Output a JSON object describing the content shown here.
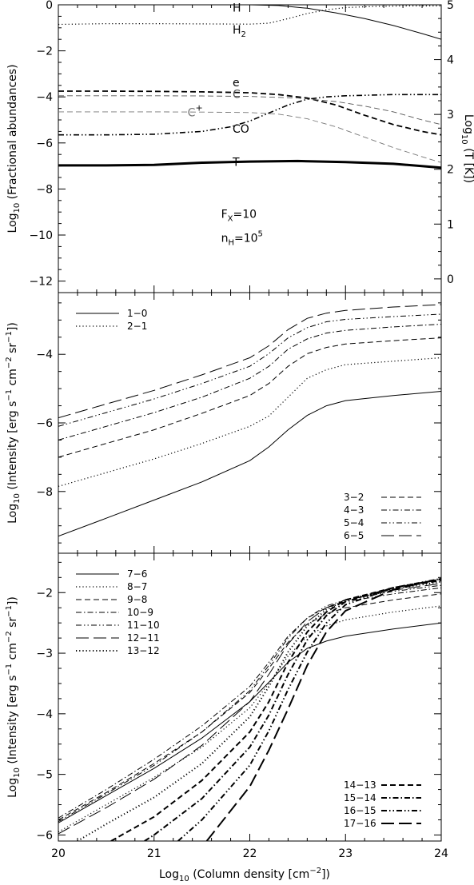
{
  "figure": {
    "xlabel_main": "Log",
    "xlabel_sub": "10",
    "xlabel_rest": " (Column density [cm",
    "xlabel_sup": "−2",
    "xlabel_end": "])"
  },
  "chart_data": [
    {
      "id": "abundances",
      "type": "line",
      "xlim": [
        20,
        24
      ],
      "ylim": [
        -12.5,
        0
      ],
      "y2lim": [
        -0.25,
        5
      ],
      "ylabel": {
        "main": "Log",
        "sub": "10",
        "rest": " (Fractional abundances)"
      },
      "y2label": {
        "main": "Log",
        "sub": "10",
        "rest": " (T [K])"
      },
      "xticks": [
        20,
        21,
        22,
        23,
        24
      ],
      "yticks": [
        0,
        -2,
        -4,
        -6,
        -8,
        -10,
        -12
      ],
      "ytick_labels": [
        "0",
        "−2",
        "−4",
        "−6",
        "−8",
        "−10",
        "−12"
      ],
      "y2ticks": [
        5,
        4,
        3,
        2,
        1,
        0
      ],
      "y2tick_labels": [
        "5",
        "4",
        "3",
        "2",
        "1",
        "0"
      ],
      "show_xtick_labels": false,
      "annotations": [
        {
          "text": "F",
          "sub": "X",
          "rest": "=10",
          "x": 21.7,
          "y": -9.25
        },
        {
          "text": "n",
          "sub": "H",
          "rest": "=10",
          "sup": "5",
          "x": 21.7,
          "y": -10.3
        }
      ],
      "series": [
        {
          "name": "H",
          "style": "solid",
          "width": 1,
          "color": "#000000",
          "axis": "left",
          "label": {
            "text": "H",
            "x": 21.82,
            "y": -0.3
          },
          "x": [
            20,
            21,
            22,
            22.3,
            22.6,
            22.9,
            23.2,
            23.5,
            23.8,
            24
          ],
          "y": [
            0,
            0,
            0,
            -0.03,
            -0.15,
            -0.35,
            -0.6,
            -0.9,
            -1.25,
            -1.5
          ]
        },
        {
          "name": "H",
          "sub": "2",
          "style": "dotted",
          "width": 1.2,
          "color": "#000000",
          "axis": "left",
          "label": {
            "text": "H",
            "sub": "2",
            "x": 21.82,
            "y": -1.25
          },
          "x": [
            20,
            20.5,
            21,
            21.5,
            22,
            22.2,
            22.4,
            22.6,
            22.8,
            23,
            23.3,
            23.6,
            24
          ],
          "y": [
            -0.85,
            -0.82,
            -0.82,
            -0.83,
            -0.84,
            -0.8,
            -0.6,
            -0.38,
            -0.22,
            -0.12,
            -0.07,
            -0.05,
            -0.05
          ]
        },
        {
          "name": "e",
          "style": "dashed",
          "width": 1.8,
          "color": "#000000",
          "axis": "left",
          "label": {
            "text": "e",
            "x": 21.82,
            "y": -3.55
          },
          "x": [
            20,
            20.5,
            21,
            21.5,
            22,
            22.3,
            22.6,
            22.9,
            23.2,
            23.5,
            23.8,
            24
          ],
          "y": [
            -3.75,
            -3.75,
            -3.76,
            -3.78,
            -3.82,
            -3.9,
            -4.05,
            -4.35,
            -4.8,
            -5.2,
            -5.5,
            -5.65
          ]
        },
        {
          "name": "C",
          "style": "dashed",
          "width": 0.9,
          "color": "#555555",
          "axis": "left",
          "label": {
            "text": "C",
            "x": 21.82,
            "y": -4.05
          },
          "x": [
            20,
            20.5,
            21,
            21.5,
            22,
            22.5,
            22.9,
            23.2,
            23.5,
            23.8,
            24
          ],
          "y": [
            -3.95,
            -3.95,
            -3.95,
            -3.96,
            -3.98,
            -4.05,
            -4.2,
            -4.4,
            -4.65,
            -5.0,
            -5.2
          ]
        },
        {
          "name": "C",
          "sup": "+",
          "style": "dashed",
          "width": 0.9,
          "color": "#777777",
          "axis": "left",
          "label": {
            "text": "C",
            "sup": "+",
            "x": 21.35,
            "y": -4.85
          },
          "x": [
            20,
            20.5,
            21,
            21.5,
            22,
            22.3,
            22.6,
            22.9,
            23.2,
            23.5,
            23.8,
            24
          ],
          "y": [
            -4.65,
            -4.65,
            -4.65,
            -4.66,
            -4.68,
            -4.75,
            -4.95,
            -5.3,
            -5.75,
            -6.2,
            -6.6,
            -6.85
          ]
        },
        {
          "name": "CO",
          "style": "dashdotdot",
          "width": 1.6,
          "color": "#000000",
          "axis": "left",
          "label": {
            "text": "CO",
            "x": 21.82,
            "y": -5.55
          },
          "x": [
            20,
            20.5,
            21,
            21.5,
            21.8,
            22,
            22.2,
            22.4,
            22.6,
            22.8,
            23,
            23.5,
            24
          ],
          "y": [
            -5.65,
            -5.65,
            -5.62,
            -5.5,
            -5.3,
            -5.05,
            -4.7,
            -4.35,
            -4.1,
            -4.0,
            -3.95,
            -3.9,
            -3.9
          ]
        },
        {
          "name": "T",
          "style": "solid",
          "width": 3,
          "color": "#000000",
          "axis": "right",
          "label": {
            "text": "T",
            "x": 21.82,
            "y": -7.0
          },
          "x": [
            20,
            20.5,
            21,
            21.5,
            22,
            22.5,
            23,
            23.5,
            24
          ],
          "y": [
            2.07,
            2.07,
            2.08,
            2.12,
            2.14,
            2.15,
            2.13,
            2.1,
            2.03
          ]
        }
      ]
    },
    {
      "id": "intensity-low",
      "type": "line",
      "xlim": [
        20,
        24
      ],
      "ylim": [
        -9.8,
        -2.2
      ],
      "ylabel": {
        "main": "Log",
        "sub": "10",
        "rest": " (Intensity [erg s",
        "sup1": "−1",
        "mid": " cm",
        "sup2": "−2",
        "mid2": " sr",
        "sup3": "−1",
        "end": "])"
      },
      "xticks": [
        20,
        21,
        22,
        23,
        24
      ],
      "yticks": [
        -4,
        -6,
        -8
      ],
      "ytick_labels": [
        "−4",
        "−6",
        "−8"
      ],
      "show_xtick_labels": false,
      "legends": [
        {
          "position": "top-left",
          "entries": [
            "1−0",
            "2−1"
          ]
        },
        {
          "position": "bottom-right",
          "entries": [
            "3−2",
            "4−3",
            "5−4",
            "6−5"
          ]
        }
      ],
      "series": [
        {
          "name": "1−0",
          "style": "solid",
          "width": 1,
          "x": [
            20,
            20.5,
            21,
            21.5,
            22,
            22.2,
            22.4,
            22.6,
            22.8,
            23,
            23.5,
            24
          ],
          "y": [
            -9.3,
            -8.78,
            -8.25,
            -7.72,
            -7.1,
            -6.7,
            -6.2,
            -5.78,
            -5.5,
            -5.35,
            -5.2,
            -5.08
          ]
        },
        {
          "name": "2−1",
          "style": "dotted",
          "width": 1.2,
          "x": [
            20,
            20.5,
            21,
            21.5,
            22,
            22.2,
            22.4,
            22.6,
            22.8,
            23,
            23.5,
            24
          ],
          "y": [
            -7.85,
            -7.45,
            -7.05,
            -6.6,
            -6.1,
            -5.8,
            -5.25,
            -4.7,
            -4.45,
            -4.3,
            -4.2,
            -4.1
          ]
        },
        {
          "name": "3−2",
          "style": "dashed",
          "width": 1,
          "x": [
            20,
            20.5,
            21,
            21.5,
            22,
            22.2,
            22.4,
            22.6,
            22.8,
            23,
            23.5,
            24
          ],
          "y": [
            -7.0,
            -6.6,
            -6.2,
            -5.72,
            -5.2,
            -4.85,
            -4.35,
            -3.98,
            -3.8,
            -3.7,
            -3.6,
            -3.52
          ]
        },
        {
          "name": "4−3",
          "style": "dashdot",
          "width": 1,
          "x": [
            20,
            20.5,
            21,
            21.5,
            22,
            22.2,
            22.4,
            22.6,
            22.8,
            23,
            23.5,
            24
          ],
          "y": [
            -6.5,
            -6.1,
            -5.7,
            -5.25,
            -4.7,
            -4.35,
            -3.85,
            -3.55,
            -3.38,
            -3.3,
            -3.2,
            -3.12
          ]
        },
        {
          "name": "5−4",
          "style": "dashdotdot",
          "width": 1,
          "x": [
            20,
            20.5,
            21,
            21.5,
            22,
            22.2,
            22.4,
            22.6,
            22.8,
            23,
            23.5,
            24
          ],
          "y": [
            -6.1,
            -5.7,
            -5.3,
            -4.85,
            -4.35,
            -3.98,
            -3.52,
            -3.22,
            -3.05,
            -2.98,
            -2.9,
            -2.83
          ]
        },
        {
          "name": "6−5",
          "style": "longdash",
          "width": 1,
          "x": [
            20,
            20.5,
            21,
            21.5,
            22,
            22.2,
            22.4,
            22.6,
            22.8,
            23,
            23.5,
            24
          ],
          "y": [
            -5.85,
            -5.45,
            -5.05,
            -4.6,
            -4.1,
            -3.75,
            -3.28,
            -2.95,
            -2.8,
            -2.72,
            -2.62,
            -2.55
          ]
        }
      ]
    },
    {
      "id": "intensity-high",
      "type": "line",
      "xlim": [
        20,
        24
      ],
      "ylim": [
        -6.1,
        -1.35
      ],
      "ylabel": {
        "main": "Log",
        "sub": "10",
        "rest": " (Intensity [erg s",
        "sup1": "−1",
        "mid": " cm",
        "sup2": "−2",
        "mid2": " sr",
        "sup3": "−1",
        "end": "])"
      },
      "xticks": [
        20,
        21,
        22,
        23,
        24
      ],
      "xtick_labels": [
        "20",
        "21",
        "22",
        "23",
        "24"
      ],
      "yticks": [
        -2,
        -3,
        -4,
        -5,
        -6
      ],
      "ytick_labels": [
        "−2",
        "−3",
        "−4",
        "−5",
        "−6"
      ],
      "show_xtick_labels": true,
      "legends": [
        {
          "position": "top-left",
          "entries": [
            "7−6",
            "8−7",
            "9−8",
            "10−9",
            "11−10",
            "12−11",
            "13−12"
          ]
        },
        {
          "position": "bottom-right",
          "entries": [
            "14−13",
            "15−14",
            "16−15",
            "17−16"
          ]
        }
      ],
      "series": [
        {
          "name": "7−6",
          "style": "solid",
          "width": 1,
          "x": [
            20,
            20.5,
            21,
            21.5,
            22,
            22.2,
            22.4,
            22.6,
            22.8,
            23,
            23.5,
            24
          ],
          "y": [
            -5.8,
            -5.35,
            -4.9,
            -4.4,
            -3.8,
            -3.48,
            -3.15,
            -2.92,
            -2.8,
            -2.72,
            -2.6,
            -2.5
          ]
        },
        {
          "name": "8−7",
          "style": "dotted",
          "width": 1.2,
          "x": [
            20,
            20.5,
            21,
            21.5,
            22,
            22.2,
            22.4,
            22.6,
            22.8,
            23,
            23.5,
            24
          ],
          "y": [
            -5.95,
            -5.5,
            -5.05,
            -4.55,
            -3.9,
            -3.5,
            -3.05,
            -2.72,
            -2.55,
            -2.45,
            -2.32,
            -2.22
          ]
        },
        {
          "name": "9−8",
          "style": "dashed",
          "width": 1,
          "x": [
            20,
            20.5,
            21,
            21.5,
            22,
            22.2,
            22.4,
            22.6,
            22.8,
            23,
            23.5,
            24
          ],
          "y": [
            -5.75,
            -5.3,
            -4.82,
            -4.3,
            -3.65,
            -3.25,
            -2.82,
            -2.52,
            -2.35,
            -2.25,
            -2.12,
            -2.02
          ]
        },
        {
          "name": "10−9",
          "style": "dashdot",
          "width": 1,
          "x": [
            20,
            20.5,
            21,
            21.5,
            22,
            22.2,
            22.4,
            22.6,
            22.8,
            23,
            23.5,
            24
          ],
          "y": [
            -5.72,
            -5.25,
            -4.75,
            -4.2,
            -3.55,
            -3.15,
            -2.72,
            -2.42,
            -2.25,
            -2.15,
            -2.02,
            -1.92
          ]
        },
        {
          "name": "11−10",
          "style": "dashdotdot",
          "width": 1,
          "x": [
            20,
            20.5,
            21,
            21.5,
            22,
            22.2,
            22.4,
            22.6,
            22.8,
            23,
            23.5,
            24
          ],
          "y": [
            -5.78,
            -5.32,
            -4.85,
            -4.3,
            -3.62,
            -3.2,
            -2.75,
            -2.42,
            -2.22,
            -2.12,
            -1.98,
            -1.88
          ]
        },
        {
          "name": "12−11",
          "style": "longdash",
          "width": 1,
          "x": [
            20,
            20.5,
            21,
            21.5,
            22,
            22.2,
            22.4,
            22.6,
            22.8,
            23,
            23.5,
            24
          ],
          "y": [
            -5.98,
            -5.55,
            -5.08,
            -4.52,
            -3.8,
            -3.35,
            -2.85,
            -2.48,
            -2.25,
            -2.12,
            -1.96,
            -1.85
          ]
        },
        {
          "name": "13−12",
          "style": "dotted",
          "width": 2,
          "x": [
            20.2,
            20.5,
            21,
            21.5,
            22,
            22.2,
            22.4,
            22.6,
            22.8,
            23,
            23.5,
            24
          ],
          "y": [
            -6.1,
            -5.82,
            -5.38,
            -4.82,
            -4.05,
            -3.55,
            -2.98,
            -2.55,
            -2.28,
            -2.12,
            -1.94,
            -1.82
          ]
        },
        {
          "name": "14−13",
          "style": "dashed",
          "width": 2,
          "x": [
            20.55,
            21,
            21.5,
            22,
            22.2,
            22.4,
            22.6,
            22.8,
            23,
            23.5,
            24
          ],
          "y": [
            -6.1,
            -5.7,
            -5.1,
            -4.3,
            -3.8,
            -3.15,
            -2.65,
            -2.32,
            -2.12,
            -1.92,
            -1.8
          ]
        },
        {
          "name": "15−14",
          "style": "dashdot",
          "width": 2,
          "x": [
            20.9,
            21,
            21.5,
            22,
            22.2,
            22.4,
            22.6,
            22.8,
            23,
            23.5,
            24
          ],
          "y": [
            -6.1,
            -6.0,
            -5.4,
            -4.55,
            -4.02,
            -3.35,
            -2.78,
            -2.38,
            -2.15,
            -1.92,
            -1.78
          ]
        },
        {
          "name": "16−15",
          "style": "dashdotdot",
          "width": 2,
          "x": [
            21.25,
            21.5,
            22,
            22.2,
            22.4,
            22.6,
            22.8,
            23,
            23.5,
            24
          ],
          "y": [
            -6.1,
            -5.75,
            -4.85,
            -4.28,
            -3.6,
            -2.98,
            -2.5,
            -2.2,
            -1.92,
            -1.77
          ]
        },
        {
          "name": "17−16",
          "style": "longdash",
          "width": 2,
          "x": [
            21.55,
            22,
            22.2,
            22.4,
            22.6,
            22.8,
            23,
            23.5,
            24
          ],
          "y": [
            -6.1,
            -5.2,
            -4.6,
            -3.92,
            -3.2,
            -2.65,
            -2.3,
            -1.95,
            -1.77
          ]
        }
      ]
    }
  ]
}
